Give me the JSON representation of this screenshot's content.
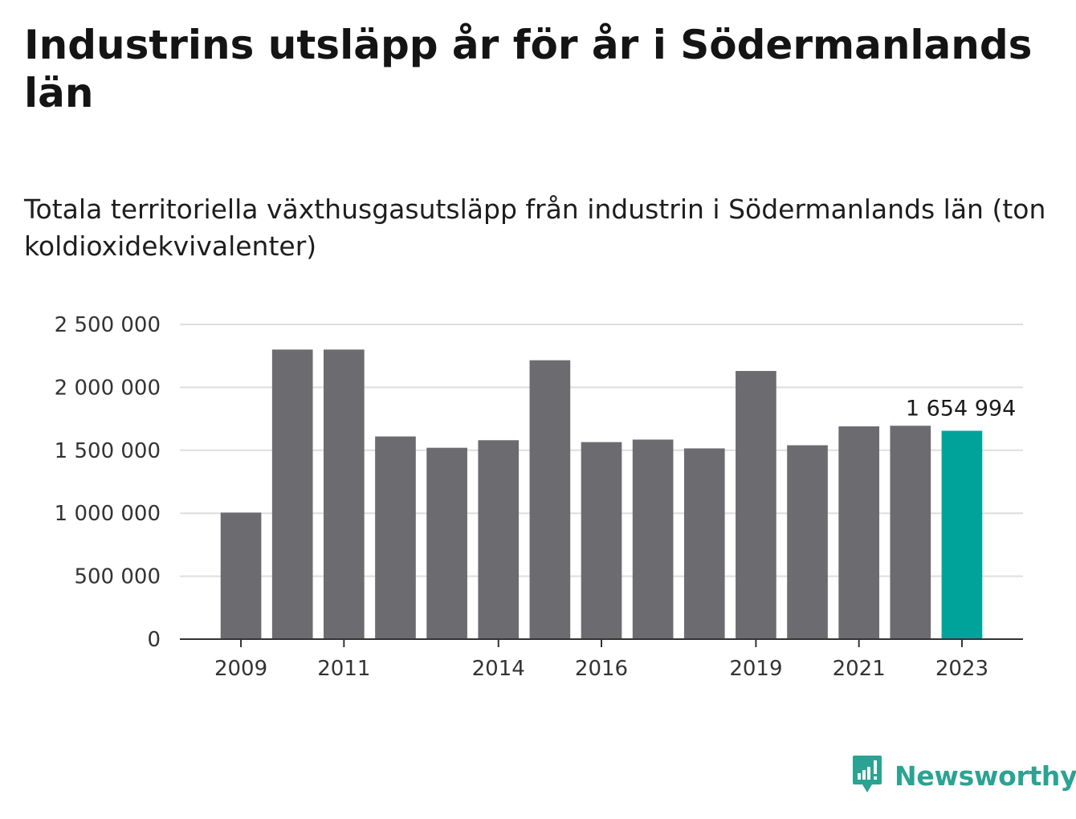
{
  "title": "Industrins utsläpp år för år i Södermanlands län",
  "subtitle": "Totala territoriella växthusgasutsläpp från industrin i Södermanlands län (ton koldioxidekvivalenter)",
  "chart_data": {
    "type": "bar",
    "categories": [
      "2009",
      "2010",
      "2011",
      "2012",
      "2013",
      "2014",
      "2015",
      "2016",
      "2017",
      "2018",
      "2019",
      "2020",
      "2021",
      "2022",
      "2023"
    ],
    "values": [
      1005000,
      2300000,
      2300000,
      1610000,
      1520000,
      1580000,
      2215000,
      1565000,
      1585000,
      1515000,
      2130000,
      1540000,
      1690000,
      1695000,
      1654994
    ],
    "x_tick_labels": [
      "2009",
      "2011",
      "2014",
      "2016",
      "2019",
      "2021",
      "2023"
    ],
    "y_ticks": [
      0,
      500000,
      1000000,
      1500000,
      2000000,
      2500000
    ],
    "y_tick_labels": [
      "0",
      "500 000",
      "1 000 000",
      "1 500 000",
      "2 000 000",
      "2 500 000"
    ],
    "ylim": [
      0,
      2500000
    ],
    "grid": true,
    "annotation": {
      "category": "2023",
      "text": "1 654 994"
    },
    "colors": {
      "bar": "#6c6b70",
      "highlight": "#00a39a",
      "grid": "#dedede",
      "axis": "#333333"
    },
    "highlight_category": "2023"
  },
  "brand": {
    "name": "Newsworthy",
    "icon": "bar-chart-speech-bubble-icon",
    "color": "#2aa393"
  }
}
